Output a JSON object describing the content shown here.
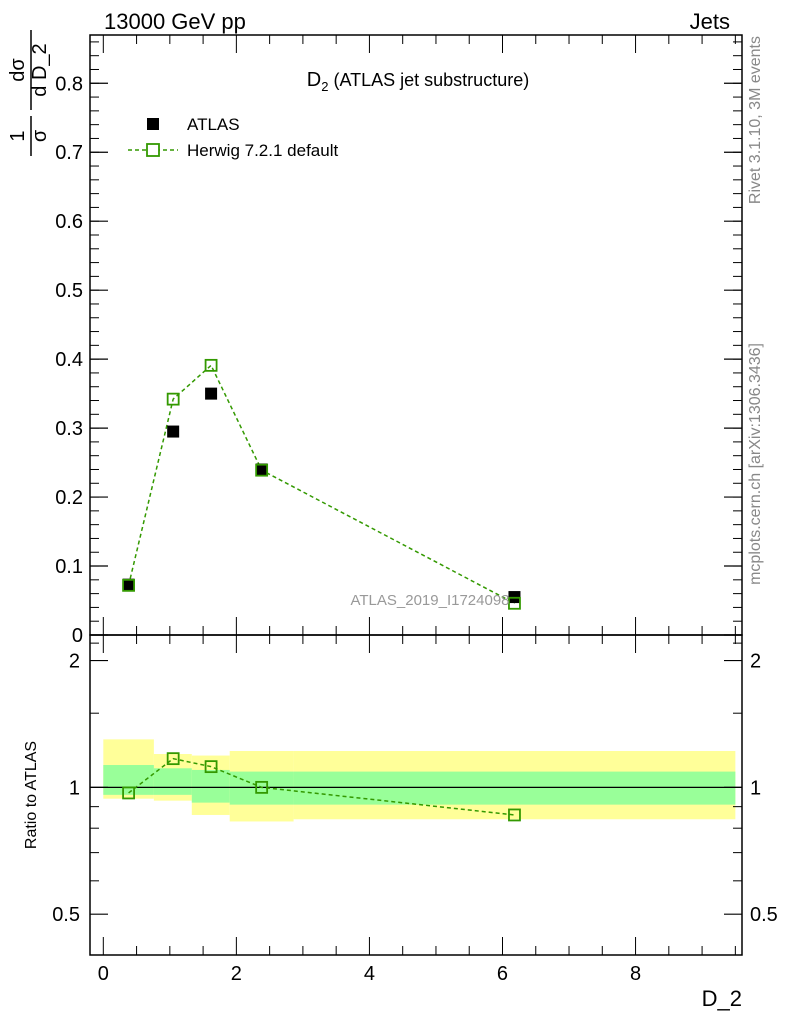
{
  "header": {
    "left": "13000 GeV pp",
    "right": "Jets"
  },
  "side_labels": {
    "rivet": "Rivet 3.1.10,  3M events",
    "mcplots": "mcplots.cern.ch [arXiv:1306.3436]"
  },
  "watermark": "ATLAS_2019_I1724098",
  "legend": {
    "title_main": "D",
    "title_sub": "2",
    "title_rest": " (ATLAS jet substructure)",
    "data_label": "ATLAS",
    "mc_label": "Herwig 7.2.1 default"
  },
  "colors": {
    "data": "#000000",
    "mc": "#339900",
    "band_inner": "#99ff99",
    "band_outer": "#ffff99"
  },
  "chart_data": [
    {
      "type": "scatter",
      "panel": "main",
      "xlabel": "D_2",
      "ylabel_parts": [
        "1",
        "σ",
        "dσ",
        "d D_2"
      ],
      "xlim": [
        -0.2,
        9.6
      ],
      "ylim": [
        0,
        0.87
      ],
      "yticks": [
        {
          "v": 0,
          "label": "0"
        },
        {
          "v": 0.1,
          "label": "0.1"
        },
        {
          "v": 0.2,
          "label": "0.2"
        },
        {
          "v": 0.3,
          "label": "0.3"
        },
        {
          "v": 0.4,
          "label": "0.4"
        },
        {
          "v": 0.5,
          "label": "0.5"
        },
        {
          "v": 0.6,
          "label": "0.6"
        },
        {
          "v": 0.7,
          "label": "0.7"
        },
        {
          "v": 0.8,
          "label": "0.8"
        }
      ],
      "legend_position": "top-left",
      "series": [
        {
          "name": "ATLAS",
          "marker": "filled-square",
          "x": [
            0.38,
            1.05,
            1.62,
            2.38,
            6.18
          ],
          "y": [
            0.073,
            0.295,
            0.35,
            0.24,
            0.055
          ]
        },
        {
          "name": "Herwig 7.2.1 default",
          "marker": "open-square",
          "line": "dashed",
          "x": [
            0.38,
            1.05,
            1.62,
            2.38,
            6.18
          ],
          "y": [
            0.072,
            0.342,
            0.391,
            0.239,
            0.046
          ]
        }
      ]
    },
    {
      "type": "line",
      "panel": "ratio",
      "xlabel": "D_2",
      "ylabel": "Ratio to ATLAS",
      "xlim": [
        -0.2,
        9.6
      ],
      "ylim": [
        0.4,
        2.3
      ],
      "log_y": true,
      "xticks": [
        {
          "v": 0,
          "label": "0"
        },
        {
          "v": 2,
          "label": "2"
        },
        {
          "v": 4,
          "label": "4"
        },
        {
          "v": 6,
          "label": "6"
        },
        {
          "v": 8,
          "label": "8"
        }
      ],
      "yticks": [
        {
          "v": 0.5,
          "label": "0.5"
        },
        {
          "v": 1,
          "label": "1"
        },
        {
          "v": 2,
          "label": "2"
        }
      ],
      "bands": [
        {
          "x0": 0.0,
          "x1": 0.76,
          "inner": [
            0.96,
            1.13
          ],
          "outer": [
            0.94,
            1.3
          ]
        },
        {
          "x0": 0.76,
          "x1": 1.33,
          "inner": [
            0.96,
            1.11
          ],
          "outer": [
            0.93,
            1.2
          ]
        },
        {
          "x0": 1.33,
          "x1": 1.9,
          "inner": [
            0.92,
            1.1
          ],
          "outer": [
            0.86,
            1.19
          ]
        },
        {
          "x0": 1.9,
          "x1": 2.86,
          "inner": [
            0.91,
            1.09
          ],
          "outer": [
            0.83,
            1.22
          ]
        },
        {
          "x0": 2.86,
          "x1": 9.5,
          "inner": [
            0.91,
            1.09
          ],
          "outer": [
            0.84,
            1.22
          ]
        }
      ],
      "series": [
        {
          "name": "Herwig 7.2.1 default",
          "marker": "open-square",
          "line": "dashed",
          "x": [
            0.38,
            1.05,
            1.62,
            2.38,
            6.18
          ],
          "y": [
            0.97,
            1.17,
            1.12,
            1.0,
            0.86
          ]
        }
      ]
    }
  ]
}
